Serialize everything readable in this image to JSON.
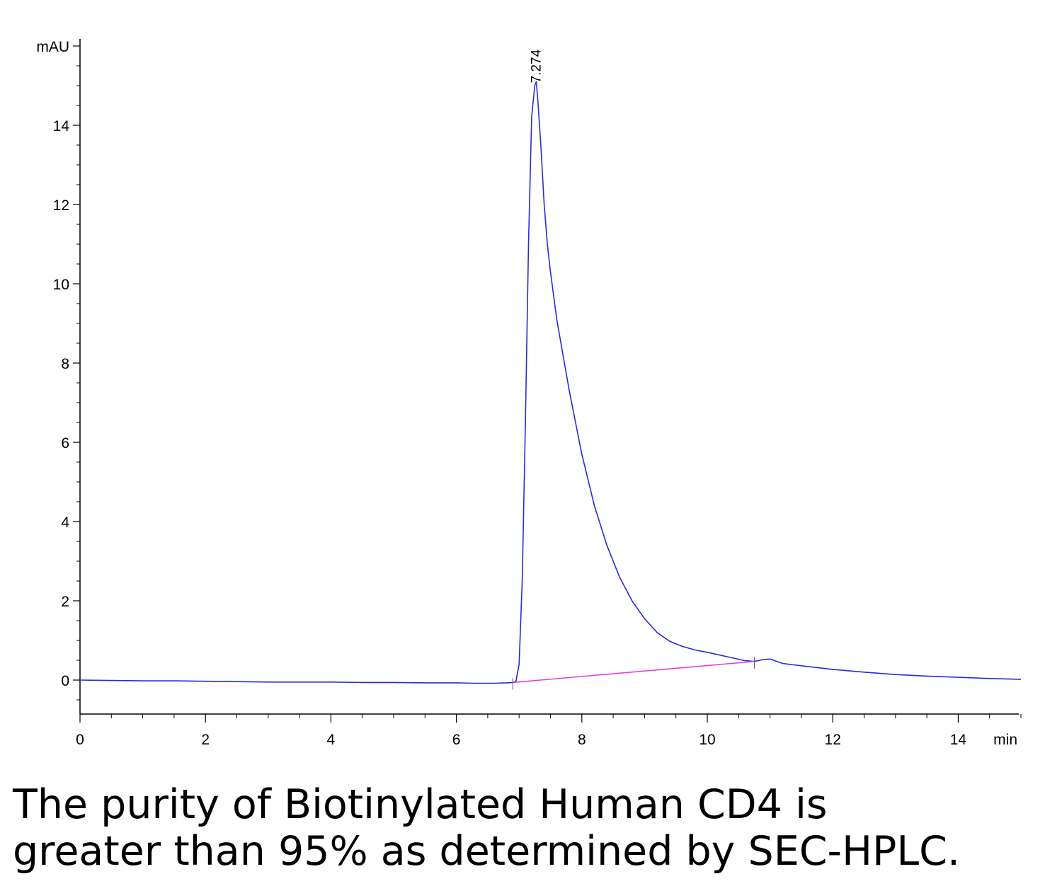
{
  "chart_data": {
    "type": "line",
    "xlabel": "min",
    "ylabel": "mAU",
    "xlim": [
      0,
      15
    ],
    "ylim": [
      -0.85,
      15.8
    ],
    "x_ticks": [
      0,
      2,
      4,
      6,
      8,
      10,
      12,
      14
    ],
    "y_ticks": [
      0,
      2,
      4,
      6,
      8,
      10,
      12,
      14
    ],
    "grid": false,
    "colors": {
      "trace": "#2b2bd6",
      "baseline": "#e040e0",
      "axis": "#000000"
    },
    "series": [
      {
        "x": [
          0,
          0.5,
          1,
          1.5,
          2,
          2.5,
          3,
          3.5,
          4,
          4.5,
          5,
          5.5,
          6,
          6.3,
          6.6,
          6.8,
          6.9,
          6.95,
          7.0,
          7.05,
          7.1,
          7.15,
          7.2,
          7.25,
          7.274,
          7.3,
          7.35,
          7.4,
          7.45,
          7.5,
          7.6,
          7.7,
          7.8,
          7.9,
          8.0,
          8.2,
          8.4,
          8.6,
          8.8,
          9.0,
          9.2,
          9.4,
          9.6,
          9.8,
          10.0,
          10.2,
          10.4,
          10.6,
          10.75,
          10.9,
          11.0,
          11.2,
          11.5,
          12.0,
          12.5,
          13.0,
          13.5,
          14.0,
          14.5,
          15.0
        ],
        "y": [
          0.0,
          -0.01,
          -0.02,
          -0.02,
          -0.03,
          -0.04,
          -0.05,
          -0.05,
          -0.05,
          -0.06,
          -0.06,
          -0.07,
          -0.07,
          -0.08,
          -0.08,
          -0.07,
          -0.06,
          -0.03,
          0.4,
          2.5,
          6.5,
          11.0,
          14.2,
          15.0,
          15.1,
          14.6,
          13.4,
          12.0,
          11.0,
          10.3,
          9.1,
          8.2,
          7.3,
          6.5,
          5.7,
          4.4,
          3.4,
          2.6,
          2.0,
          1.55,
          1.2,
          0.98,
          0.85,
          0.76,
          0.7,
          0.63,
          0.56,
          0.49,
          0.47,
          0.52,
          0.53,
          0.42,
          0.36,
          0.27,
          0.2,
          0.14,
          0.1,
          0.07,
          0.04,
          0.02
        ]
      },
      {
        "x": [
          6.9,
          10.75
        ],
        "y": [
          -0.06,
          0.47
        ]
      }
    ],
    "annotations": [
      {
        "text": "7.274",
        "x": 7.274,
        "y": 15.1
      }
    ]
  },
  "caption": {
    "line1": "The purity of Biotinylated Human CD4 is",
    "line2": "greater than 95% as determined by SEC-HPLC."
  }
}
